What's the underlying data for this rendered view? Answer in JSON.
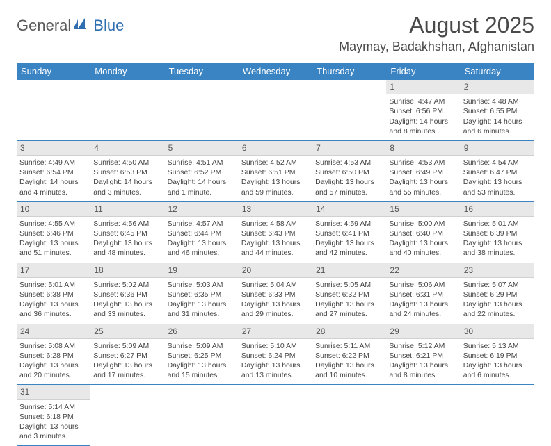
{
  "brand": {
    "part1": "General",
    "part2": "Blue"
  },
  "title": "August 2025",
  "location": "Maymay, Badakhshan, Afghanistan",
  "colors": {
    "header_bg": "#3b84c4",
    "header_text": "#ffffff",
    "daynum_bg": "#e8e8e8",
    "rule": "#3b84c4",
    "text": "#444444",
    "brand_gray": "#5a5a5a",
    "brand_blue": "#2f6fb1"
  },
  "weekdays": [
    "Sunday",
    "Monday",
    "Tuesday",
    "Wednesday",
    "Thursday",
    "Friday",
    "Saturday"
  ],
  "weeks": [
    [
      null,
      null,
      null,
      null,
      null,
      {
        "n": "1",
        "sunrise": "4:47 AM",
        "sunset": "6:56 PM",
        "daylight": "14 hours and 8 minutes."
      },
      {
        "n": "2",
        "sunrise": "4:48 AM",
        "sunset": "6:55 PM",
        "daylight": "14 hours and 6 minutes."
      }
    ],
    [
      {
        "n": "3",
        "sunrise": "4:49 AM",
        "sunset": "6:54 PM",
        "daylight": "14 hours and 4 minutes."
      },
      {
        "n": "4",
        "sunrise": "4:50 AM",
        "sunset": "6:53 PM",
        "daylight": "14 hours and 3 minutes."
      },
      {
        "n": "5",
        "sunrise": "4:51 AM",
        "sunset": "6:52 PM",
        "daylight": "14 hours and 1 minute."
      },
      {
        "n": "6",
        "sunrise": "4:52 AM",
        "sunset": "6:51 PM",
        "daylight": "13 hours and 59 minutes."
      },
      {
        "n": "7",
        "sunrise": "4:53 AM",
        "sunset": "6:50 PM",
        "daylight": "13 hours and 57 minutes."
      },
      {
        "n": "8",
        "sunrise": "4:53 AM",
        "sunset": "6:49 PM",
        "daylight": "13 hours and 55 minutes."
      },
      {
        "n": "9",
        "sunrise": "4:54 AM",
        "sunset": "6:47 PM",
        "daylight": "13 hours and 53 minutes."
      }
    ],
    [
      {
        "n": "10",
        "sunrise": "4:55 AM",
        "sunset": "6:46 PM",
        "daylight": "13 hours and 51 minutes."
      },
      {
        "n": "11",
        "sunrise": "4:56 AM",
        "sunset": "6:45 PM",
        "daylight": "13 hours and 48 minutes."
      },
      {
        "n": "12",
        "sunrise": "4:57 AM",
        "sunset": "6:44 PM",
        "daylight": "13 hours and 46 minutes."
      },
      {
        "n": "13",
        "sunrise": "4:58 AM",
        "sunset": "6:43 PM",
        "daylight": "13 hours and 44 minutes."
      },
      {
        "n": "14",
        "sunrise": "4:59 AM",
        "sunset": "6:41 PM",
        "daylight": "13 hours and 42 minutes."
      },
      {
        "n": "15",
        "sunrise": "5:00 AM",
        "sunset": "6:40 PM",
        "daylight": "13 hours and 40 minutes."
      },
      {
        "n": "16",
        "sunrise": "5:01 AM",
        "sunset": "6:39 PM",
        "daylight": "13 hours and 38 minutes."
      }
    ],
    [
      {
        "n": "17",
        "sunrise": "5:01 AM",
        "sunset": "6:38 PM",
        "daylight": "13 hours and 36 minutes."
      },
      {
        "n": "18",
        "sunrise": "5:02 AM",
        "sunset": "6:36 PM",
        "daylight": "13 hours and 33 minutes."
      },
      {
        "n": "19",
        "sunrise": "5:03 AM",
        "sunset": "6:35 PM",
        "daylight": "13 hours and 31 minutes."
      },
      {
        "n": "20",
        "sunrise": "5:04 AM",
        "sunset": "6:33 PM",
        "daylight": "13 hours and 29 minutes."
      },
      {
        "n": "21",
        "sunrise": "5:05 AM",
        "sunset": "6:32 PM",
        "daylight": "13 hours and 27 minutes."
      },
      {
        "n": "22",
        "sunrise": "5:06 AM",
        "sunset": "6:31 PM",
        "daylight": "13 hours and 24 minutes."
      },
      {
        "n": "23",
        "sunrise": "5:07 AM",
        "sunset": "6:29 PM",
        "daylight": "13 hours and 22 minutes."
      }
    ],
    [
      {
        "n": "24",
        "sunrise": "5:08 AM",
        "sunset": "6:28 PM",
        "daylight": "13 hours and 20 minutes."
      },
      {
        "n": "25",
        "sunrise": "5:09 AM",
        "sunset": "6:27 PM",
        "daylight": "13 hours and 17 minutes."
      },
      {
        "n": "26",
        "sunrise": "5:09 AM",
        "sunset": "6:25 PM",
        "daylight": "13 hours and 15 minutes."
      },
      {
        "n": "27",
        "sunrise": "5:10 AM",
        "sunset": "6:24 PM",
        "daylight": "13 hours and 13 minutes."
      },
      {
        "n": "28",
        "sunrise": "5:11 AM",
        "sunset": "6:22 PM",
        "daylight": "13 hours and 10 minutes."
      },
      {
        "n": "29",
        "sunrise": "5:12 AM",
        "sunset": "6:21 PM",
        "daylight": "13 hours and 8 minutes."
      },
      {
        "n": "30",
        "sunrise": "5:13 AM",
        "sunset": "6:19 PM",
        "daylight": "13 hours and 6 minutes."
      }
    ],
    [
      {
        "n": "31",
        "sunrise": "5:14 AM",
        "sunset": "6:18 PM",
        "daylight": "13 hours and 3 minutes."
      },
      null,
      null,
      null,
      null,
      null,
      null
    ]
  ],
  "labels": {
    "sunrise": "Sunrise:",
    "sunset": "Sunset:",
    "daylight": "Daylight:"
  }
}
